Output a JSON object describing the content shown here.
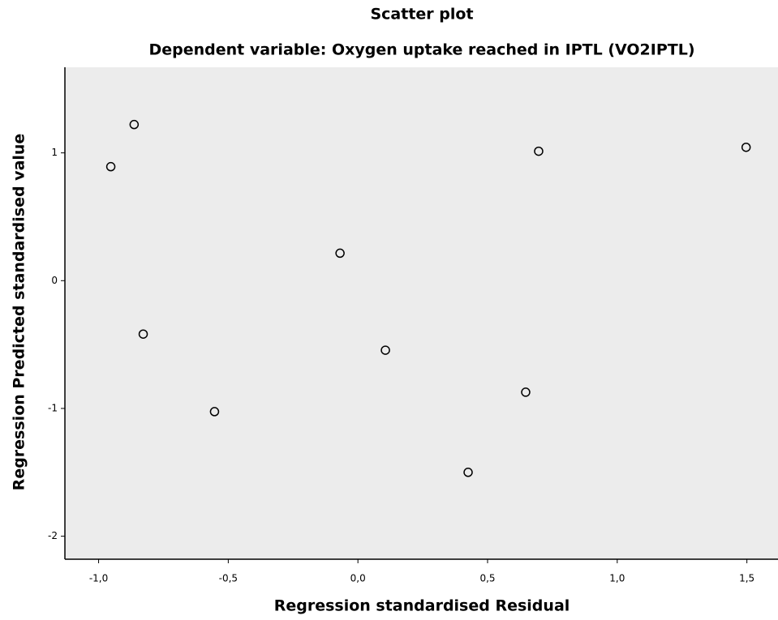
{
  "chart_data": {
    "type": "scatter",
    "title": "Scatter plot",
    "subtitle": "Dependent variable: Oxygen uptake reached in IPTL (VO2IPTL)",
    "x_label": "Regression standardised Residual",
    "y_label": "Regression Predicted standardised value",
    "x": [
      -0.953,
      -0.863,
      -0.828,
      -0.553,
      -0.069,
      0.106,
      0.425,
      0.647,
      0.697,
      1.497
    ],
    "values": [
      0.892,
      1.222,
      -0.418,
      -1.025,
      0.215,
      -0.544,
      -1.5,
      -0.873,
      1.013,
      1.044
    ],
    "xlim": [
      -1.13,
      1.62
    ],
    "ylim": [
      -2.18,
      1.67
    ],
    "xticks": [
      {
        "value": -1,
        "label": "-1,0"
      },
      {
        "value": -0.5,
        "label": "-0,5"
      },
      {
        "value": 0,
        "label": "0,0"
      },
      {
        "value": 0.5,
        "label": "0,5"
      },
      {
        "value": 1,
        "label": "1,0"
      },
      {
        "value": 1.5,
        "label": "1,5"
      }
    ],
    "yticks": [
      -2,
      -1,
      0,
      1
    ],
    "color": "#000000",
    "background": "#ececec"
  }
}
